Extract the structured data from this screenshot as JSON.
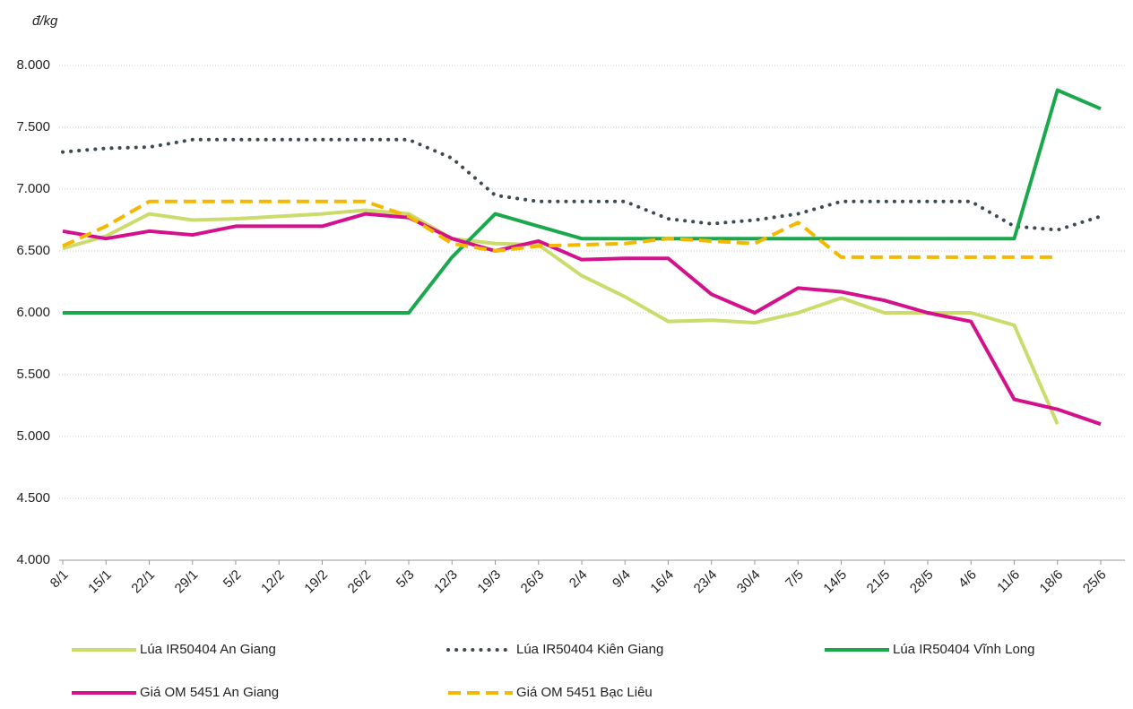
{
  "chart_data": {
    "type": "line",
    "y_axis_label": "đ/kg",
    "categories": [
      "8/1",
      "15/1",
      "22/1",
      "29/1",
      "5/2",
      "12/2",
      "19/2",
      "26/2",
      "5/3",
      "12/3",
      "19/3",
      "26/3",
      "2/4",
      "9/4",
      "16/4",
      "23/4",
      "30/4",
      "7/5",
      "14/5",
      "21/5",
      "28/5",
      "4/6",
      "11/6",
      "18/6",
      "25/6"
    ],
    "ylim": [
      4000,
      8000
    ],
    "yticks": [
      {
        "value": 4000,
        "label": "4.000"
      },
      {
        "value": 4500,
        "label": "4.500"
      },
      {
        "value": 5000,
        "label": "5.000"
      },
      {
        "value": 5500,
        "label": "5.500"
      },
      {
        "value": 6000,
        "label": "6.000"
      },
      {
        "value": 6500,
        "label": "6.500"
      },
      {
        "value": 7000,
        "label": "7.000"
      },
      {
        "value": 7500,
        "label": "7.500"
      },
      {
        "value": 8000,
        "label": "8.000"
      }
    ],
    "grid": true,
    "series": [
      {
        "name": "Lúa IR50404 An Giang",
        "color": "#cbdb6c",
        "style": "solid",
        "values": [
          6520,
          6620,
          6800,
          6750,
          6760,
          6780,
          6800,
          6830,
          6800,
          6600,
          6560,
          6550,
          6300,
          6130,
          5930,
          5940,
          5920,
          6000,
          6120,
          6000,
          6000,
          6000,
          5900,
          5100,
          null
        ]
      },
      {
        "name": "Lúa IR50404 Kiên Giang",
        "color": "#3d4a50",
        "style": "dotted",
        "values": [
          7300,
          7330,
          7340,
          7400,
          7400,
          7400,
          7400,
          7400,
          7400,
          7250,
          6950,
          6900,
          6900,
          6900,
          6760,
          6720,
          6750,
          6800,
          6900,
          6900,
          6900,
          6900,
          6700,
          6670,
          6780
        ]
      },
      {
        "name": "Lúa IR50404 Vĩnh Long",
        "color": "#1ba84c",
        "style": "solid",
        "values": [
          6000,
          6000,
          6000,
          6000,
          6000,
          6000,
          6000,
          6000,
          6000,
          6450,
          6800,
          6700,
          6600,
          6600,
          6600,
          6600,
          6600,
          6600,
          6600,
          6600,
          6600,
          6600,
          6600,
          7800,
          7650
        ]
      },
      {
        "name": "Giá OM 5451 An Giang",
        "color": "#d4118c",
        "style": "solid",
        "values": [
          6660,
          6600,
          6660,
          6630,
          6700,
          6700,
          6700,
          6800,
          6770,
          6600,
          6500,
          6580,
          6430,
          6440,
          6440,
          6150,
          6000,
          6200,
          6170,
          6100,
          6000,
          5930,
          5300,
          5220,
          5100
        ]
      },
      {
        "name": "Giá OM 5451 Bạc Liêu",
        "color": "#f5b800",
        "style": "dashed",
        "values": [
          6540,
          6700,
          6900,
          6900,
          6900,
          6900,
          6900,
          6900,
          6780,
          6560,
          6500,
          6540,
          6550,
          6560,
          6600,
          6580,
          6560,
          6730,
          6450,
          6450,
          6450,
          6450,
          6450,
          6450,
          null
        ]
      }
    ]
  }
}
